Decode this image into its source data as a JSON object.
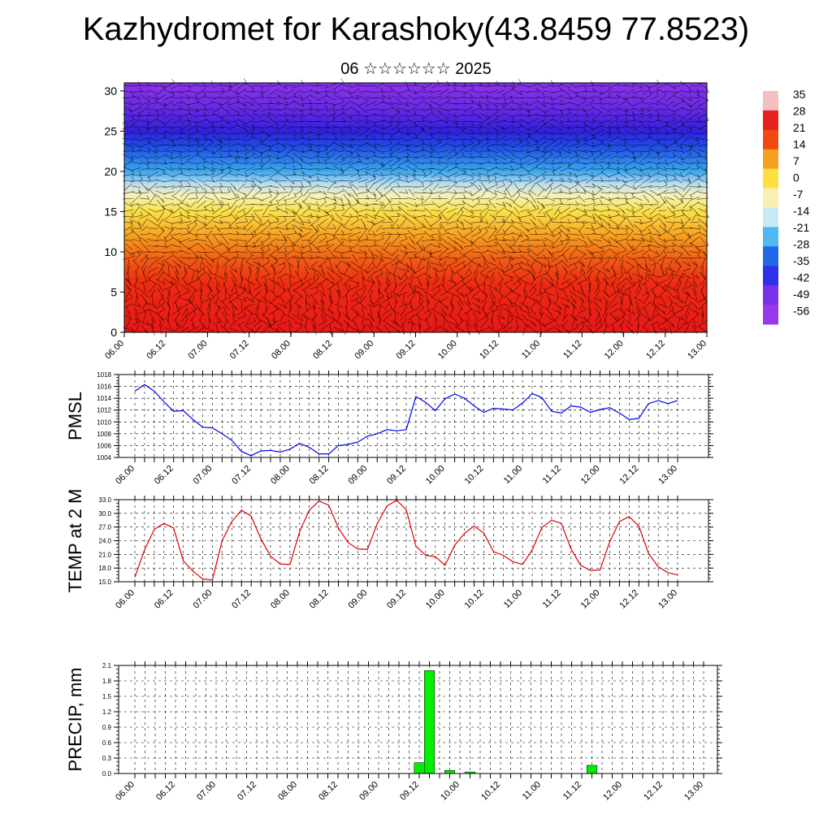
{
  "header": {
    "title": "Kazhydromet for Karashoky(43.8459 77.8523)",
    "subtitle": "06 ☆☆☆☆☆☆ 2025"
  },
  "time_labels": [
    "06.00",
    "06.12",
    "07.00",
    "07.12",
    "08.00",
    "08.12",
    "09.00",
    "09.12",
    "10.00",
    "10.12",
    "11.00",
    "11.12",
    "12.00",
    "12.12",
    "13.00"
  ],
  "chart_data": [
    {
      "type": "heatmap",
      "yticks": [
        "0",
        "5",
        "10",
        "15",
        "20",
        "25",
        "30"
      ],
      "ylim": [
        0,
        31
      ],
      "colorbar_labels": [
        "35",
        "28",
        "21",
        "14",
        "7",
        "0",
        "-7",
        "-14",
        "-21",
        "-28",
        "-35",
        "-42",
        "-49",
        "-56"
      ],
      "colorbar_colors": [
        "#f2c0c0",
        "#e82020",
        "#f04a10",
        "#f7a020",
        "#fbe040",
        "#f8f0b0",
        "#c8e8f4",
        "#50b8f0",
        "#2068e8",
        "#3030e8",
        "#7a30e8",
        "#9838e8"
      ],
      "colormap": [
        {
          "z": 0,
          "color": "#e81818"
        },
        {
          "z": 6,
          "color": "#ef2a12"
        },
        {
          "z": 9,
          "color": "#f25a14"
        },
        {
          "z": 12,
          "color": "#f7a020"
        },
        {
          "z": 15,
          "color": "#fbe048"
        },
        {
          "z": 17,
          "color": "#f6f2b8"
        },
        {
          "z": 18.5,
          "color": "#b8dcf0"
        },
        {
          "z": 20,
          "color": "#3ca8f0"
        },
        {
          "z": 23,
          "color": "#1e50e6"
        },
        {
          "z": 25,
          "color": "#3320dc"
        },
        {
          "z": 28,
          "color": "#6a2ae6"
        },
        {
          "z": 31,
          "color": "#8a34e8"
        }
      ]
    },
    {
      "type": "line",
      "ylabel": "PMSL",
      "yticks": [
        "1004",
        "1006",
        "1008",
        "1010",
        "1012",
        "1014",
        "1016",
        "1018"
      ],
      "ylim": [
        1004,
        1018
      ],
      "color": "#0000ee",
      "x_step_hours": 3,
      "values": [
        1015.2,
        1016.3,
        1015.2,
        1013.4,
        1011.8,
        1011.9,
        1010.4,
        1009.1,
        1009.0,
        1008.0,
        1006.9,
        1005.0,
        1004.3,
        1005.1,
        1005.2,
        1004.9,
        1005.4,
        1006.4,
        1005.7,
        1004.6,
        1004.6,
        1006.0,
        1006.2,
        1006.6,
        1007.6,
        1008.0,
        1008.7,
        1008.5,
        1008.7,
        1014.3,
        1013.3,
        1011.9,
        1013.9,
        1014.7,
        1014.0,
        1012.7,
        1011.6,
        1012.3,
        1012.2,
        1012.0,
        1013.2,
        1014.8,
        1014.1,
        1011.8,
        1011.5,
        1012.7,
        1012.5,
        1011.6,
        1012.1,
        1012.4,
        1011.5,
        1010.4,
        1010.6,
        1013.1,
        1013.6,
        1013.1,
        1013.6
      ]
    },
    {
      "type": "line",
      "ylabel": "TEMP at 2 M",
      "yticks": [
        "15.0",
        "18.0",
        "21.0",
        "24.0",
        "27.0",
        "30.0",
        "33.0"
      ],
      "ylim": [
        15,
        33
      ],
      "color": "#e00000",
      "x_step_hours": 3,
      "values": [
        16.0,
        22.0,
        26.5,
        27.8,
        26.8,
        19.6,
        17.3,
        15.6,
        15.4,
        24.0,
        28.2,
        30.7,
        29.4,
        24.4,
        20.6,
        18.9,
        18.8,
        26.0,
        30.7,
        32.7,
        31.8,
        26.8,
        23.6,
        22.2,
        22.1,
        27.7,
        31.6,
        32.9,
        30.8,
        22.8,
        20.8,
        20.5,
        18.6,
        23.0,
        25.6,
        27.2,
        25.7,
        21.6,
        20.8,
        19.4,
        18.8,
        22.0,
        26.9,
        28.5,
        27.8,
        22.2,
        18.6,
        17.5,
        17.6,
        23.8,
        28.2,
        29.3,
        27.2,
        21.2,
        18.3,
        17.0,
        16.5
      ]
    },
    {
      "type": "bar",
      "ylabel": "PRECIP, mm",
      "yticks": [
        "0.0",
        "0.3",
        "0.6",
        "0.9",
        "1.2",
        "1.5",
        "1.8",
        "2.1"
      ],
      "ylim": [
        0,
        2.1
      ],
      "color": "#00ee00",
      "x_step_hours": 3,
      "values": [
        0,
        0,
        0,
        0,
        0,
        0,
        0,
        0,
        0,
        0,
        0,
        0,
        0,
        0,
        0,
        0,
        0,
        0,
        0,
        0,
        0,
        0,
        0,
        0,
        0,
        0,
        0,
        0,
        0.21,
        2.0,
        0,
        0.06,
        0,
        0.03,
        0,
        0,
        0,
        0,
        0,
        0,
        0,
        0,
        0,
        0,
        0,
        0.16,
        0,
        0,
        0,
        0,
        0,
        0,
        0,
        0,
        0,
        0,
        0
      ]
    }
  ]
}
